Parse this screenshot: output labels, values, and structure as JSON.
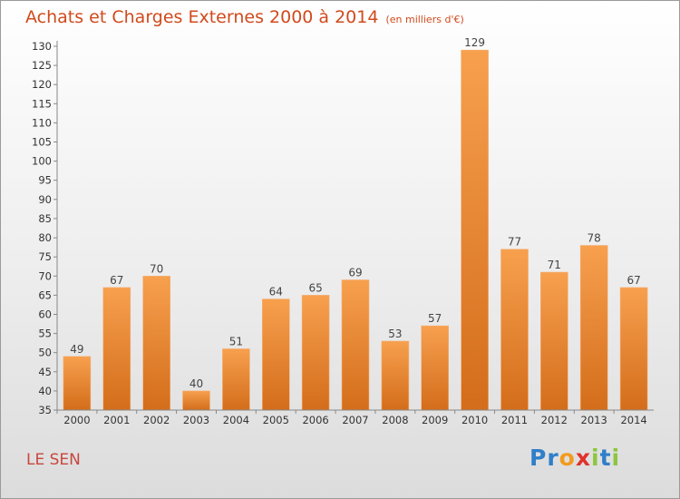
{
  "title": "Achats et Charges Externes 2000 à 2014",
  "unit": "(en milliers d'€)",
  "town": "LE SEN",
  "logo": {
    "text": "Proxiti",
    "letters": [
      {
        "ch": "P",
        "color": "#2f7fc9"
      },
      {
        "ch": "r",
        "color": "#2f7fc9"
      },
      {
        "ch": "o",
        "color": "#f39a1e"
      },
      {
        "ch": "x",
        "color": "#e0322c"
      },
      {
        "ch": "i",
        "color": "#8cc63f"
      },
      {
        "ch": "t",
        "color": "#2f7fc9"
      },
      {
        "ch": "i",
        "color": "#8cc63f"
      }
    ]
  },
  "chart_data": {
    "type": "bar",
    "categories": [
      "2000",
      "2001",
      "2002",
      "2003",
      "2004",
      "2005",
      "2006",
      "2007",
      "2008",
      "2009",
      "2010",
      "2011",
      "2012",
      "2013",
      "2014"
    ],
    "values": [
      49,
      67,
      70,
      40,
      51,
      64,
      65,
      69,
      53,
      57,
      129,
      77,
      71,
      78,
      67
    ],
    "data_labels": [
      "49",
      "67",
      "70",
      "40",
      "51",
      "64",
      "65",
      "69",
      "53",
      "57",
      "129",
      "77",
      "71",
      "78",
      "67"
    ],
    "ylim": [
      35,
      130
    ],
    "yticks": [
      35,
      40,
      45,
      50,
      55,
      60,
      65,
      70,
      75,
      80,
      85,
      90,
      95,
      100,
      105,
      110,
      115,
      120,
      125,
      130
    ],
    "grid": false,
    "bar_color": "#ef8c35",
    "bar_color_dark": "#d6701c",
    "axis_color": "#888888"
  }
}
